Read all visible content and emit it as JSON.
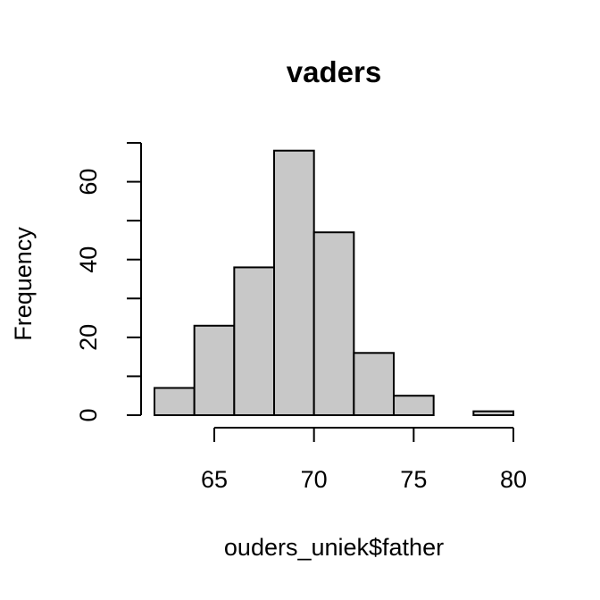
{
  "chart_data": {
    "type": "histogram",
    "title": "vaders",
    "xlabel": "ouders_uniek$father",
    "ylabel": "Frequency",
    "bins": [
      {
        "from": 62,
        "to": 64,
        "count": 7
      },
      {
        "from": 64,
        "to": 66,
        "count": 23
      },
      {
        "from": 66,
        "to": 68,
        "count": 38
      },
      {
        "from": 68,
        "to": 70,
        "count": 68
      },
      {
        "from": 70,
        "to": 72,
        "count": 47
      },
      {
        "from": 72,
        "to": 74,
        "count": 16
      },
      {
        "from": 74,
        "to": 76,
        "count": 5
      },
      {
        "from": 76,
        "to": 78,
        "count": 0
      },
      {
        "from": 78,
        "to": 80,
        "count": 1
      }
    ],
    "xlim": [
      62,
      80
    ],
    "ylim": [
      0,
      70
    ],
    "x_ticks": [
      65,
      70,
      75,
      80
    ],
    "x_tick_labels": [
      "65",
      "70",
      "75",
      "80"
    ],
    "y_ticks": [
      0,
      10,
      20,
      30,
      40,
      50,
      60,
      70
    ],
    "y_tick_labels": [
      "0",
      "20",
      "40",
      "60"
    ],
    "y_labeled_ticks": [
      0,
      20,
      40,
      60
    ],
    "bar_color": "#c8c8c8",
    "grid": false
  }
}
